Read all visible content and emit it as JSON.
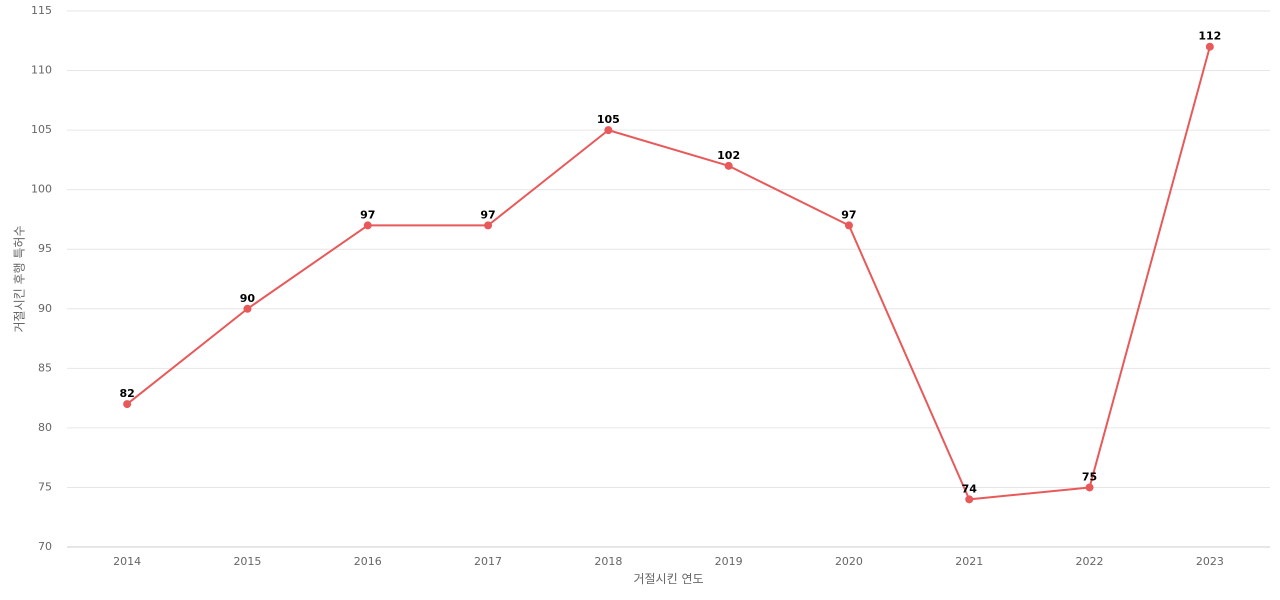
{
  "chart_data": {
    "type": "line",
    "title": "",
    "xlabel": "거절시킨 연도",
    "ylabel": "거절시킨 후행 특허수",
    "categories": [
      "2014",
      "2015",
      "2016",
      "2017",
      "2018",
      "2019",
      "2020",
      "2021",
      "2022",
      "2023"
    ],
    "series": [
      {
        "values": [
          82,
          90,
          97,
          97,
          105,
          102,
          97,
          74,
          75,
          112
        ],
        "color": "#e8595a"
      }
    ],
    "ylim": [
      70,
      115
    ],
    "yticks": [
      70,
      75,
      80,
      85,
      90,
      95,
      100,
      105,
      110,
      115
    ],
    "grid": true,
    "legend": "none",
    "data_labels": true
  }
}
